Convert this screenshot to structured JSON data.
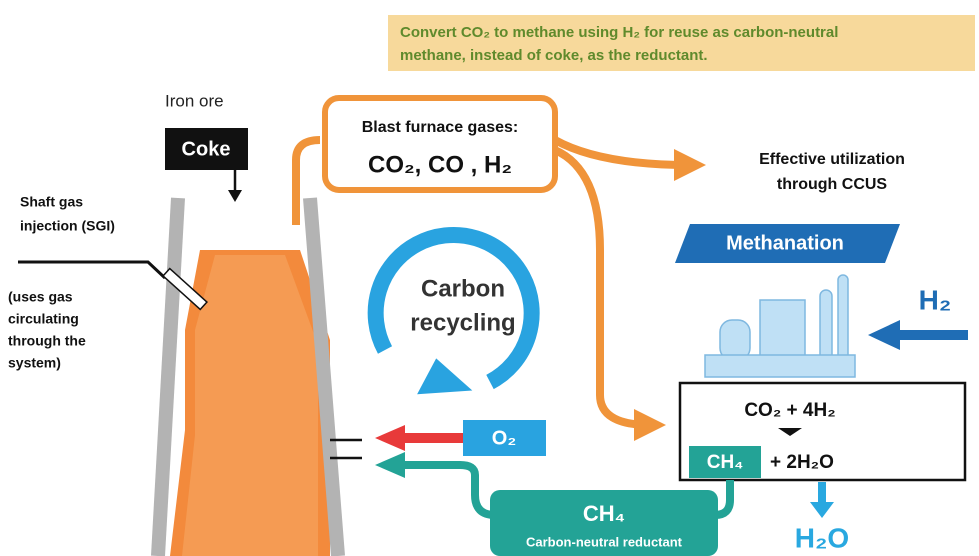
{
  "note": {
    "lines": [
      "Convert CO₂ to methane using H₂ for reuse as carbon-neutral",
      "methane, instead of coke, as the reductant."
    ]
  },
  "iron_ore": "Iron ore",
  "coke": "Coke",
  "shaft_gas": {
    "lines": [
      "Shaft gas",
      "injection (SGI)"
    ]
  },
  "uses_gas": {
    "lines": [
      "(uses gas",
      "circulating",
      "through the",
      "system)"
    ]
  },
  "blast_furnace": {
    "title": "Blast furnace gases:",
    "gases": "CO₂, CO , H₂"
  },
  "ccus": {
    "lines": [
      "Effective utilization",
      "through CCUS"
    ]
  },
  "cycle": {
    "lines": [
      "Carbon",
      "recycling"
    ]
  },
  "methanation": "Methanation",
  "h2_input": "H₂",
  "reaction": {
    "reactants": "CO₂ + 4H₂",
    "product_ch4": "CH₄",
    "product_water": "+ 2H₂O"
  },
  "oxygen": "O₂",
  "reductant": {
    "formula": "CH₄",
    "label": "Carbon-neutral reductant"
  },
  "water_output": "H₂O"
}
